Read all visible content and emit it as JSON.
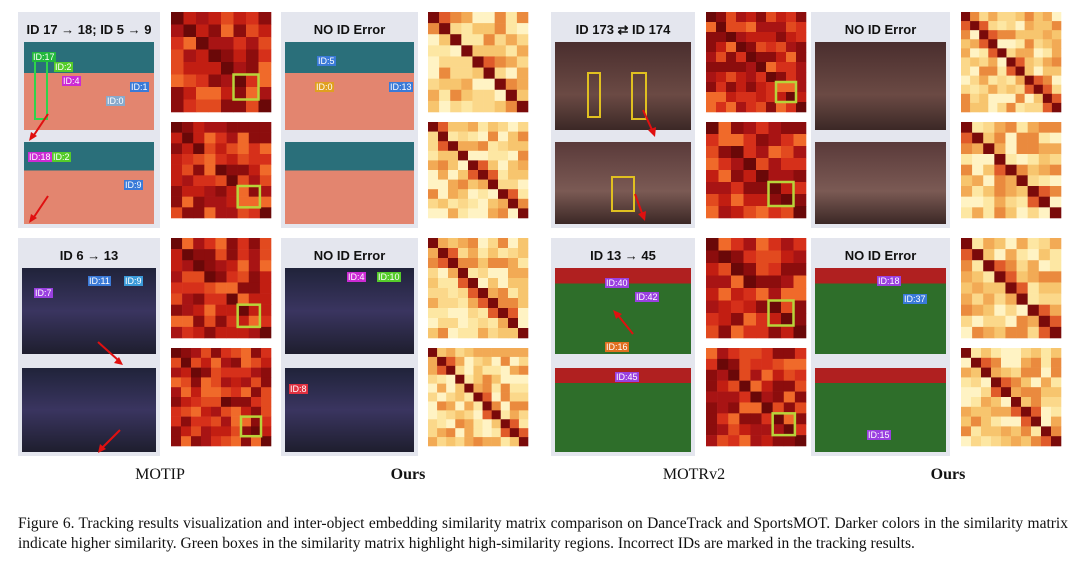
{
  "groups": {
    "g1_title": "ID 17 → 18; ID 5 → 9",
    "g2_title": "NO ID Error",
    "g3_title": "ID 173 ⇄ ID 174",
    "g4_title": "NO ID Error",
    "g5_title": "ID 6 → 13",
    "g6_title": "NO ID Error",
    "g7_title": "ID 13 → 45",
    "g8_title": "NO ID Error"
  },
  "method_labels": {
    "motip": "MOTIP",
    "ours_left": "Ours",
    "motrv2": "MOTRv2",
    "ours_right": "Ours"
  },
  "figure_caption": "Figure 6. Tracking results visualization and inter-object embedding similarity matrix comparison on DanceTrack and SportsMOT. Darker colors in the similarity matrix indicate higher similarity. Green boxes in the similarity matrix highlight high-similarity regions. Incorrect IDs are marked in the tracking results.",
  "id_tags": {
    "t1": "ID:17",
    "t2": "ID:2",
    "t3": "ID:4",
    "t4": "ID:0",
    "t5": "ID:1",
    "t6": "ID:18",
    "t7": "ID:2",
    "t8": "ID:9",
    "t9": "ID:5",
    "t10": "ID:0",
    "t11": "ID:13",
    "t12": "ID:7",
    "t13": "ID:11",
    "t14": "ID:9",
    "t15": "ID:4",
    "t16": "ID:10",
    "t17": "ID:8",
    "t18": "ID:40",
    "t19": "ID:42",
    "t20": "ID:16",
    "t21": "ID:45",
    "t22": "ID:18",
    "t23": "ID:37",
    "t24": "ID:15"
  }
}
